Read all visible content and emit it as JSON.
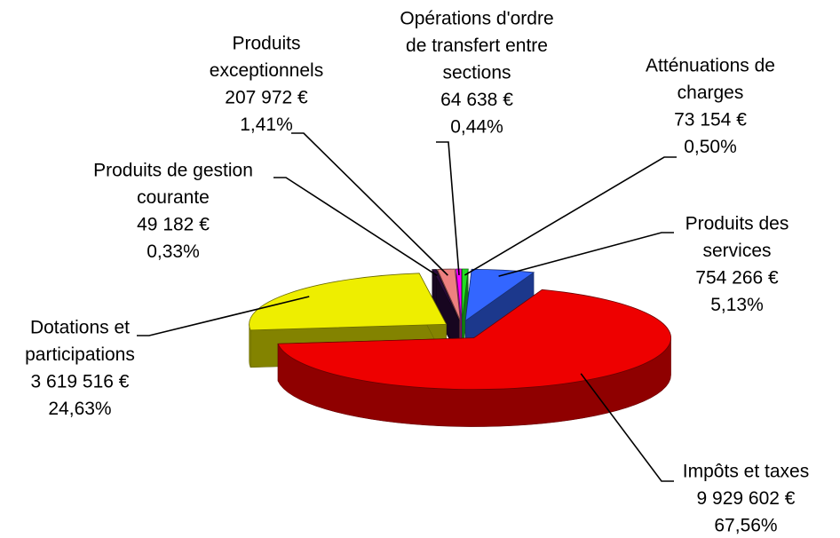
{
  "chart_data": {
    "type": "pie3d",
    "categories": [
      [
        "Atténuations de",
        "charges"
      ],
      [
        "Produits des",
        "services"
      ],
      [
        "Impôts et taxes"
      ],
      [
        "Dotations et",
        "participations"
      ],
      [
        "Produits de gestion",
        "courante"
      ],
      [
        "Produits",
        "exceptionnels"
      ],
      [
        "Opérations d'ordre",
        "de transfert entre",
        "sections"
      ]
    ],
    "values": [
      73154,
      754266,
      9929602,
      3619516,
      49182,
      207972,
      64638
    ],
    "value_labels": [
      "73 154 €",
      "754 266 €",
      "9 929 602 €",
      "3 619 516 €",
      "49 182 €",
      "207 972 €",
      "64 638 €"
    ],
    "percentages": [
      0.5,
      5.13,
      67.56,
      24.63,
      0.33,
      1.41,
      0.44
    ],
    "percentage_labels": [
      "0,50%",
      "5,13%",
      "67,56%",
      "24,63%",
      "0,33%",
      "1,41%",
      "0,44%"
    ],
    "colors": [
      "#22dd22",
      "#3366ff",
      "#ee0000",
      "#eeee00",
      "#2a0a3a",
      "#ee8080",
      "#ff00ff"
    ]
  }
}
